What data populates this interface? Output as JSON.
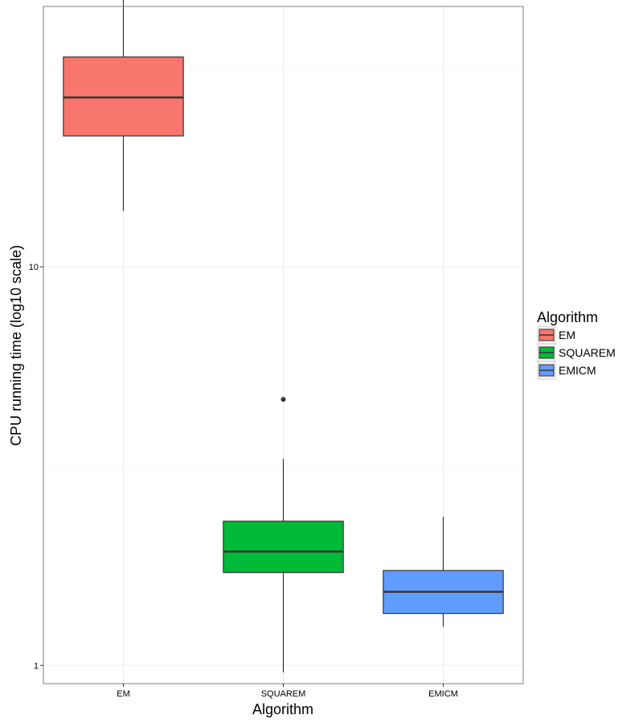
{
  "chart_data": {
    "type": "boxplot",
    "xlabel": "Algorithm",
    "ylabel": "CPU running time (log10 scale)",
    "y_scale": "log10",
    "ylim": [
      0.9,
      45
    ],
    "y_ticks": [
      1,
      10
    ],
    "grid": true,
    "legend": {
      "title": "Algorithm",
      "position": "right",
      "entries": [
        "EM",
        "SQUAREM",
        "EMICM"
      ]
    },
    "categories": [
      "EM",
      "SQUAREM",
      "EMICM"
    ],
    "series": [
      {
        "name": "EM",
        "color": "#F8766D",
        "whisker_low": 13.8,
        "q1": 21.3,
        "median": 26.6,
        "q3": 33.6,
        "whisker_high": 53.2,
        "outliers": []
      },
      {
        "name": "SQUAREM",
        "color": "#00BA38",
        "whisker_low": 0.96,
        "q1": 1.71,
        "median": 1.93,
        "q3": 2.3,
        "whisker_high": 3.3,
        "outliers": [
          4.65
        ]
      },
      {
        "name": "EMICM",
        "color": "#619CFF",
        "whisker_low": 1.25,
        "q1": 1.35,
        "median": 1.53,
        "q3": 1.73,
        "whisker_high": 2.36,
        "outliers": []
      }
    ]
  }
}
